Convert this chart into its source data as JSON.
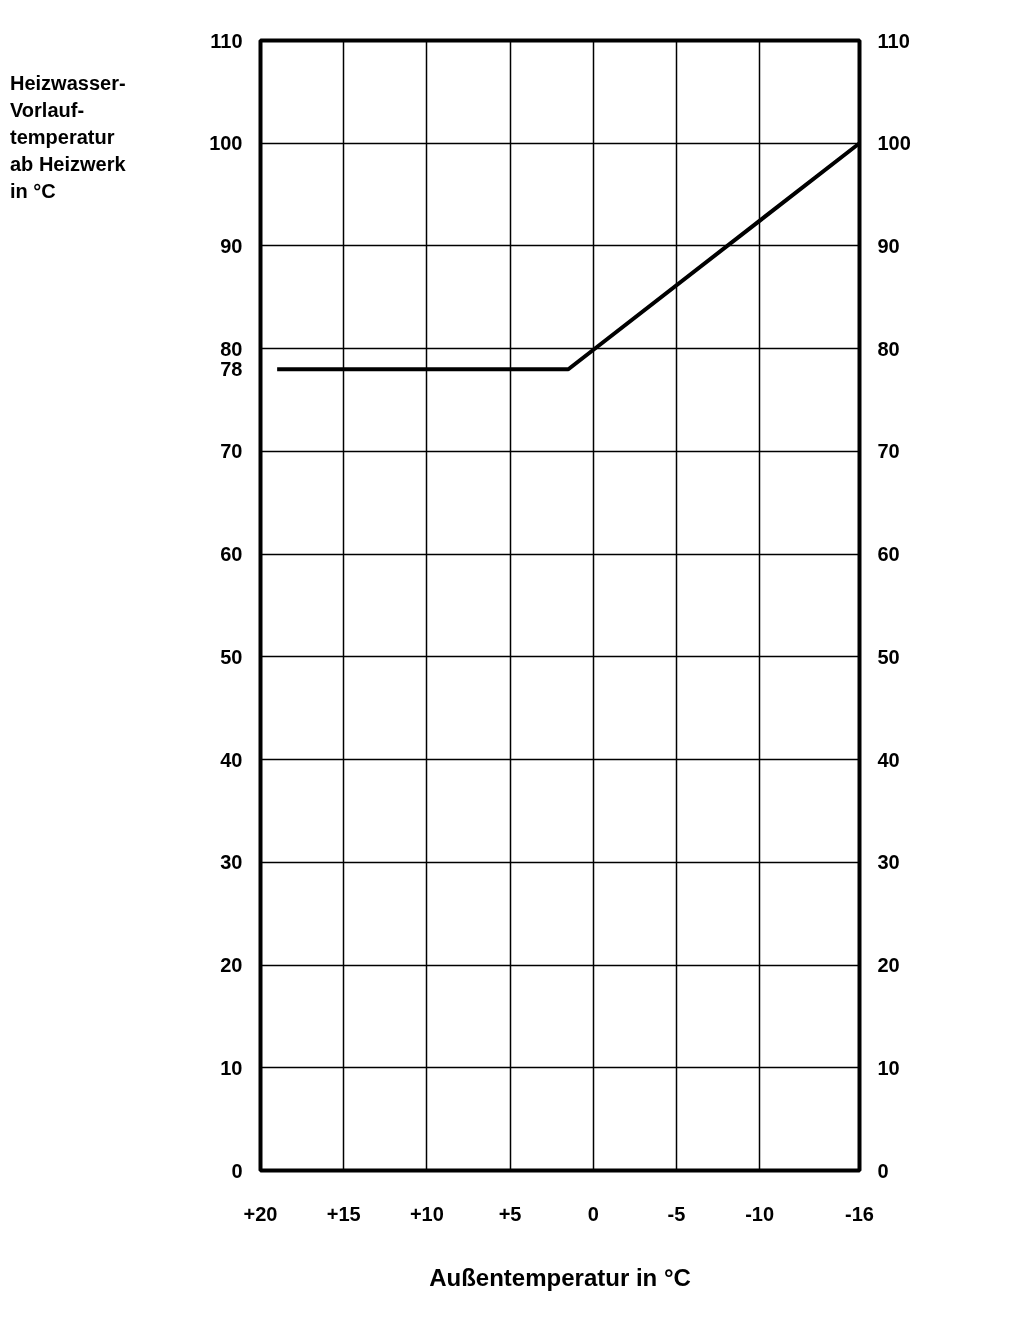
{
  "chart_data": {
    "type": "line",
    "annotations": [
      "Heizwasser-\nVorlauf-\ntemperatur\nab Heizwerk\nin °C"
    ],
    "xlabel": "Außentemperatur in °C",
    "x": [
      19,
      1.5,
      -16
    ],
    "series": [
      {
        "color": "#000000",
        "values": [
          78,
          78,
          100
        ]
      }
    ],
    "xlim": [
      20,
      -16
    ],
    "xticks": [
      {
        "value": 20,
        "label": "+20"
      },
      {
        "value": 15,
        "label": "+15"
      },
      {
        "value": 10,
        "label": "+10"
      },
      {
        "value": 5,
        "label": "+5"
      },
      0,
      -5,
      -10,
      -16
    ],
    "ylim": [
      0,
      110
    ],
    "yticks": [
      0,
      10,
      20,
      30,
      40,
      50,
      60,
      70,
      78,
      80,
      90,
      100,
      110
    ],
    "y2lim": [
      0,
      110
    ],
    "y2ticks": [
      0,
      10,
      20,
      30,
      40,
      50,
      60,
      70,
      80,
      90,
      100,
      110
    ],
    "grid": true,
    "marker": "none",
    "line_style": "solid"
  }
}
